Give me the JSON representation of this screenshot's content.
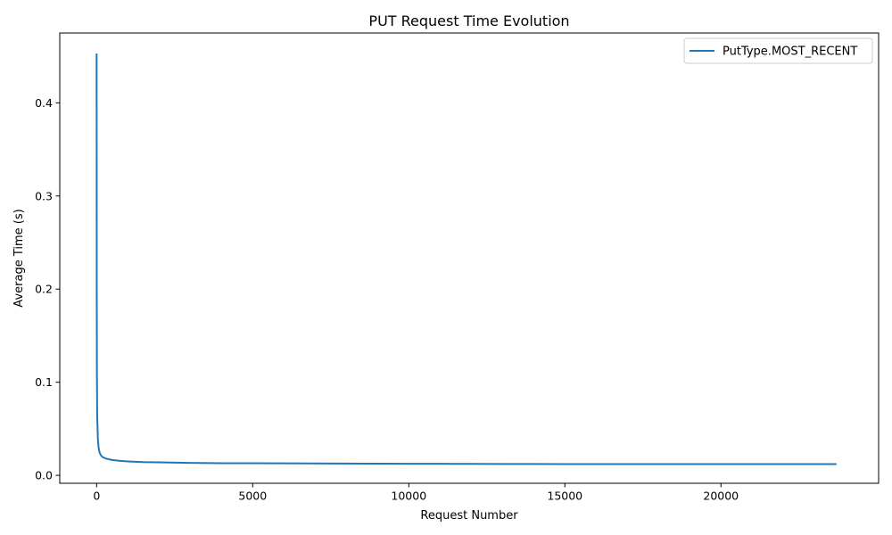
{
  "chart_data": {
    "type": "line",
    "title": "PUT Request Time Evolution",
    "xlabel": "Request Number",
    "ylabel": "Average Time (s)",
    "xlim": [
      -1180,
      25050
    ],
    "ylim": [
      -0.0085,
      0.475
    ],
    "xticks": [
      0,
      5000,
      10000,
      15000,
      20000
    ],
    "xtick_labels": [
      "0",
      "5000",
      "10000",
      "15000",
      "20000"
    ],
    "yticks": [
      0.0,
      0.1,
      0.2,
      0.3,
      0.4
    ],
    "ytick_labels": [
      "0.0",
      "0.1",
      "0.2",
      "0.3",
      "0.4"
    ],
    "grid": false,
    "legend_position": "upper right",
    "series": [
      {
        "name": "PutType.MOST_RECENT",
        "color": "#1f77b4",
        "x": [
          1,
          5,
          10,
          20,
          40,
          60,
          80,
          100,
          150,
          200,
          300,
          500,
          750,
          1000,
          1500,
          2000,
          3000,
          4000,
          5000,
          6000,
          7000,
          8000,
          9000,
          10000,
          11000,
          12000,
          13000,
          14000,
          15000,
          16000,
          17000,
          18000,
          19000,
          20000,
          21000,
          22000,
          23000,
          23700
        ],
        "y": [
          0.453,
          0.2,
          0.11,
          0.063,
          0.04,
          0.031,
          0.027,
          0.024,
          0.021,
          0.0195,
          0.018,
          0.0165,
          0.0155,
          0.015,
          0.0143,
          0.014,
          0.0134,
          0.0131,
          0.013,
          0.0129,
          0.0128,
          0.0127,
          0.0126,
          0.0125,
          0.0124,
          0.0123,
          0.0122,
          0.0122,
          0.0121,
          0.0121,
          0.0121,
          0.0121,
          0.0121,
          0.0121,
          0.0121,
          0.0121,
          0.0121,
          0.0121
        ]
      }
    ]
  }
}
